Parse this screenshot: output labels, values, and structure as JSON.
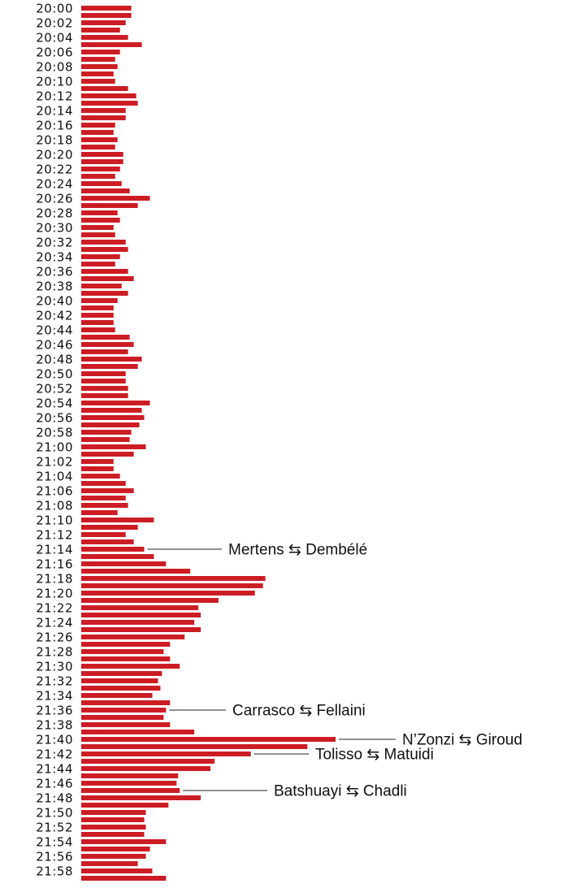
{
  "colors": {
    "bar": "#cc1c24",
    "text": "#111111",
    "line": "#222222"
  },
  "chart_data": {
    "type": "bar",
    "orientation": "horizontal",
    "tick_every": 2,
    "tick_labels": [
      "20:00",
      "20:02",
      "20:04",
      "20:06",
      "20:08",
      "20:10",
      "20:12",
      "20:14",
      "20:16",
      "20:18",
      "20:20",
      "20:22",
      "20:24",
      "20:26",
      "20:28",
      "20:30",
      "20:32",
      "20:34",
      "20:36",
      "20:38",
      "20:40",
      "20:42",
      "20:44",
      "20:46",
      "20:48",
      "20:50",
      "20:52",
      "20:54",
      "20:56",
      "20:58",
      "21:00",
      "21:02",
      "21:04",
      "21:06",
      "21:08",
      "21:10",
      "21:12",
      "21:14",
      "21:16",
      "21:18",
      "21:20",
      "21:22",
      "21:24",
      "21:26",
      "21:28",
      "21:30",
      "21:32",
      "21:34",
      "21:36",
      "21:38",
      "21:40",
      "21:42",
      "21:44",
      "21:46",
      "21:48",
      "21:50",
      "21:52",
      "21:54",
      "21:56",
      "21:58"
    ],
    "times": [
      "20:00",
      "20:01",
      "20:02",
      "20:03",
      "20:04",
      "20:05",
      "20:06",
      "20:07",
      "20:08",
      "20:09",
      "20:10",
      "20:11",
      "20:12",
      "20:13",
      "20:14",
      "20:15",
      "20:16",
      "20:17",
      "20:18",
      "20:19",
      "20:20",
      "20:21",
      "20:22",
      "20:23",
      "20:24",
      "20:25",
      "20:26",
      "20:27",
      "20:28",
      "20:29",
      "20:30",
      "20:31",
      "20:32",
      "20:33",
      "20:34",
      "20:35",
      "20:36",
      "20:37",
      "20:38",
      "20:39",
      "20:40",
      "20:41",
      "20:42",
      "20:43",
      "20:44",
      "20:45",
      "20:46",
      "20:47",
      "20:48",
      "20:49",
      "20:50",
      "20:51",
      "20:52",
      "20:53",
      "20:54",
      "20:55",
      "20:56",
      "20:57",
      "20:58",
      "20:59",
      "21:00",
      "21:01",
      "21:02",
      "21:03",
      "21:04",
      "21:05",
      "21:06",
      "21:07",
      "21:08",
      "21:09",
      "21:10",
      "21:11",
      "21:12",
      "21:13",
      "21:14",
      "21:15",
      "21:16",
      "21:17",
      "21:18",
      "21:19",
      "21:20",
      "21:21",
      "21:22",
      "21:23",
      "21:24",
      "21:25",
      "21:26",
      "21:27",
      "21:28",
      "21:29",
      "21:30",
      "21:31",
      "21:32",
      "21:33",
      "21:34",
      "21:35",
      "21:36",
      "21:37",
      "21:38",
      "21:39",
      "21:40",
      "21:41",
      "21:42",
      "21:43",
      "21:44",
      "21:45",
      "21:46",
      "21:47",
      "21:48",
      "21:49",
      "21:50",
      "21:51",
      "21:52",
      "21:53",
      "21:54",
      "21:55",
      "21:56",
      "21:57",
      "21:58",
      "21:59"
    ],
    "values": [
      62,
      62,
      55,
      48,
      58,
      75,
      48,
      42,
      45,
      40,
      42,
      58,
      68,
      70,
      55,
      55,
      42,
      40,
      45,
      42,
      52,
      52,
      48,
      42,
      50,
      60,
      85,
      70,
      45,
      48,
      40,
      42,
      55,
      58,
      48,
      42,
      58,
      65,
      50,
      58,
      45,
      40,
      40,
      40,
      42,
      60,
      65,
      58,
      75,
      70,
      55,
      55,
      58,
      58,
      85,
      75,
      78,
      72,
      62,
      60,
      80,
      65,
      40,
      40,
      48,
      55,
      65,
      55,
      58,
      45,
      90,
      70,
      55,
      65,
      78,
      90,
      105,
      135,
      228,
      225,
      215,
      170,
      145,
      148,
      140,
      148,
      128,
      110,
      102,
      110,
      122,
      100,
      95,
      98,
      88,
      110,
      105,
      102,
      110,
      140,
      315,
      280,
      210,
      165,
      160,
      120,
      118,
      122,
      148,
      108,
      80,
      78,
      80,
      78,
      105,
      85,
      80,
      70,
      88,
      105
    ],
    "xlim": [
      0,
      320
    ],
    "annotations": [
      {
        "time": "21:14",
        "label": "Mertens ⇆ Dembélé"
      },
      {
        "time": "21:36",
        "label": "Carrasco ⇆ Fellaini"
      },
      {
        "time": "21:40",
        "label": "N’Zonzi ⇆ Giroud"
      },
      {
        "time": "21:42",
        "label": "Tolisso ⇆ Matuidi"
      },
      {
        "time": "21:47",
        "label": "Batshuayi ⇆ Chadli"
      }
    ]
  }
}
